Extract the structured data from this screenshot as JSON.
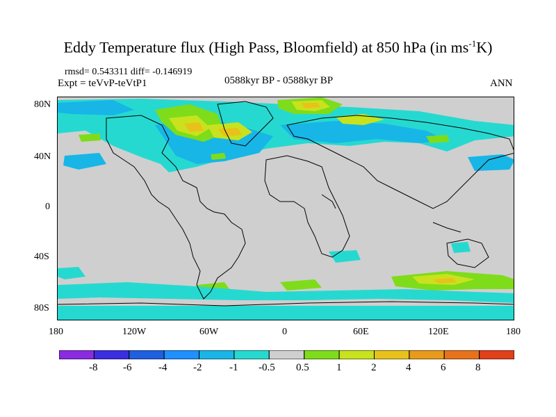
{
  "title": {
    "main": "Eddy Temperature flux (High Pass, Bloomfield) at 850 hPa (in ms",
    "sup": "-1",
    "end": "K)"
  },
  "stats": "rmsd= 0.543311 diff= -0.146919",
  "expt": "Expt = teVvP-teVtP1",
  "period": "0588kyr BP - 0588kyr BP",
  "season": "ANN",
  "lat_labels": [
    "80N",
    "40N",
    "0",
    "40S",
    "80S"
  ],
  "lon_labels": [
    "180",
    "120W",
    "60W",
    "0",
    "60E",
    "120E",
    "180"
  ],
  "colorbar": {
    "labels": [
      "-8",
      "-6",
      "-4",
      "-2",
      "-1",
      "-0.5",
      "0.5",
      "1",
      "2",
      "4",
      "6",
      "8"
    ],
    "colors": [
      "#8a2be2",
      "#3a2ee0",
      "#1f5fe0",
      "#1e90ff",
      "#17b6e6",
      "#26d9d0",
      "#cfcfcf",
      "#7fdc1a",
      "#c8e21e",
      "#e8c21a",
      "#e89a1a",
      "#e8721a",
      "#e0401a"
    ]
  }
}
